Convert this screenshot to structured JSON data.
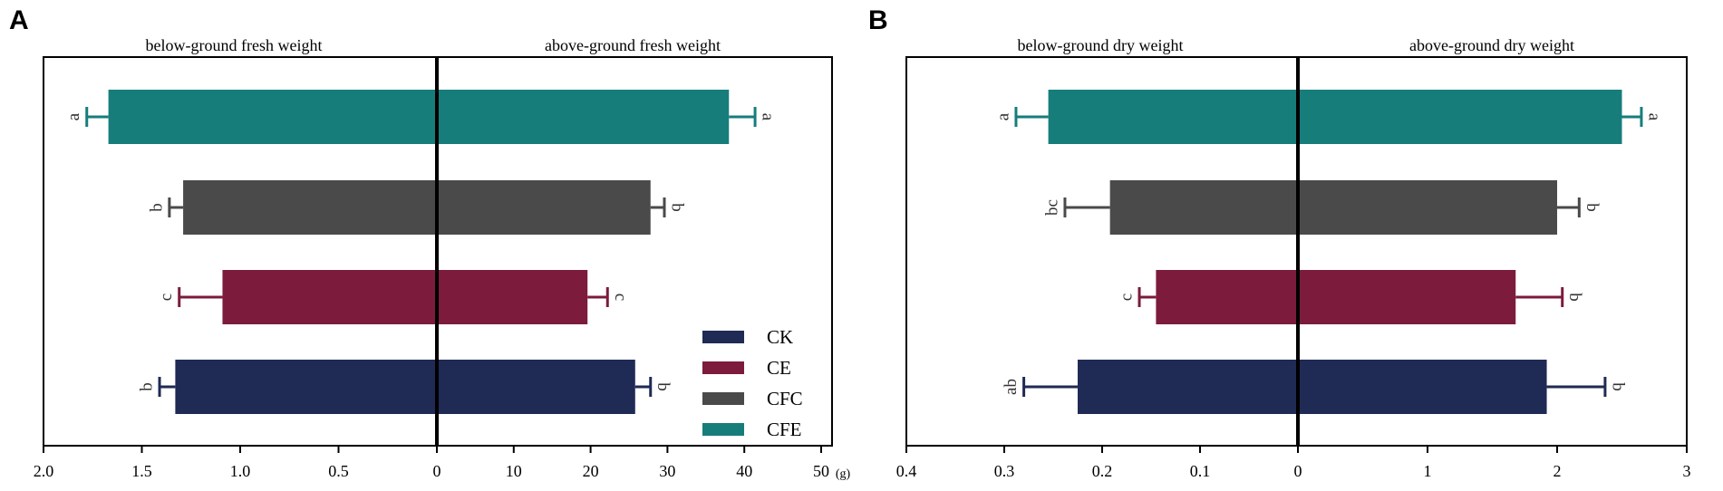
{
  "legend": [
    {
      "label": "CK",
      "color": "#1f2a55"
    },
    {
      "label": "CE",
      "color": "#7c1b3c"
    },
    {
      "label": "CFC",
      "color": "#4a4a4a"
    },
    {
      "label": "CFE",
      "color": "#167d7b"
    }
  ],
  "chart_data": [
    {
      "type": "bar",
      "orientation": "horizontal-diverging",
      "panel": "A",
      "unit": "(g)",
      "categories": [
        "CFE",
        "CFC",
        "CE",
        "CK"
      ],
      "left": {
        "title": "below-ground fresh weight",
        "xlim": [
          2.0,
          0
        ],
        "ticks": [
          2.0,
          1.5,
          1.0,
          0.5
        ],
        "tick_labels": [
          "2.0",
          "1.5",
          "1.0",
          "0.5"
        ],
        "values": [
          1.67,
          1.29,
          1.09,
          1.33
        ],
        "errors": [
          0.11,
          0.07,
          0.22,
          0.08
        ],
        "sig": [
          "a",
          "b",
          "c",
          "b"
        ]
      },
      "right": {
        "title": "above-ground fresh weight",
        "xlim": [
          0,
          50
        ],
        "ticks": [
          0,
          10,
          20,
          30,
          40,
          50
        ],
        "tick_labels": [
          "0",
          "10",
          "20",
          "30",
          "40",
          "50"
        ],
        "values": [
          38.0,
          27.8,
          19.6,
          25.8
        ],
        "errors": [
          3.4,
          1.8,
          2.6,
          2.0
        ],
        "sig": [
          "a",
          "b",
          "c",
          "b"
        ]
      }
    },
    {
      "type": "bar",
      "orientation": "horizontal-diverging",
      "panel": "B",
      "unit": "",
      "categories": [
        "CFE",
        "CFC",
        "CE",
        "CK"
      ],
      "left": {
        "title": "below-ground dry weight",
        "xlim": [
          0.4,
          0
        ],
        "ticks": [
          0.4,
          0.3,
          0.2,
          0.1
        ],
        "tick_labels": [
          "0.4",
          "0.3",
          "0.2",
          "0.1"
        ],
        "values": [
          0.255,
          0.192,
          0.145,
          0.225
        ],
        "errors": [
          0.033,
          0.046,
          0.017,
          0.055
        ],
        "sig": [
          "a",
          "bc",
          "c",
          "ab"
        ]
      },
      "right": {
        "title": "above-ground dry weight",
        "xlim": [
          0,
          3
        ],
        "ticks": [
          0,
          1,
          2,
          3
        ],
        "tick_labels": [
          "0",
          "1",
          "2",
          "3"
        ],
        "values": [
          2.5,
          2.0,
          1.68,
          1.92
        ],
        "errors": [
          0.15,
          0.17,
          0.36,
          0.45
        ],
        "sig": [
          "a",
          "b",
          "b",
          "b"
        ]
      }
    }
  ]
}
